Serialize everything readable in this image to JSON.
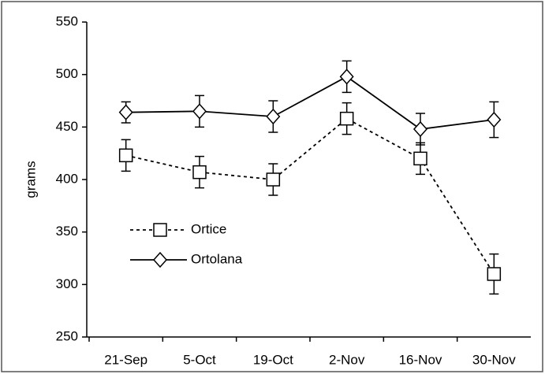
{
  "chart_data": {
    "type": "line",
    "y_label": "grams",
    "categories": [
      "21-Sep",
      "5-Oct",
      "19-Oct",
      "2-Nov",
      "16-Nov",
      "30-Nov"
    ],
    "series": [
      {
        "name": "Ortice",
        "color": "#000000",
        "linestyle": "dashed",
        "marker": "square",
        "values": [
          423,
          407,
          400,
          458,
          420,
          310
        ],
        "errors": [
          15,
          15,
          15,
          15,
          15,
          19
        ]
      },
      {
        "name": "Ortolana",
        "color": "#000000",
        "linestyle": "solid",
        "marker": "diamond",
        "values": [
          464,
          465,
          460,
          498,
          448,
          457
        ],
        "errors": [
          10,
          15,
          15,
          15,
          15,
          17
        ]
      }
    ],
    "ylim": [
      250,
      550
    ],
    "yticks": [
      250,
      300,
      350,
      400,
      450,
      500,
      550
    ],
    "grid": false
  }
}
